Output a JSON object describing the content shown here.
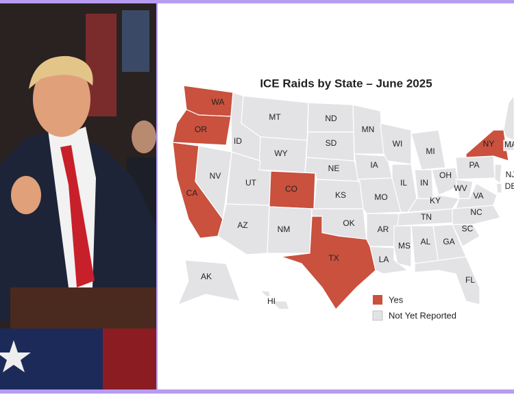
{
  "title": "ICE Raids by State – June 2025",
  "legend": [
    {
      "label": "Yes",
      "color": "#c9513d"
    },
    {
      "label": "Not Yet Reported",
      "color": "#e3e3e6"
    }
  ],
  "states": [
    {
      "abbr": "WA",
      "category": 0
    },
    {
      "abbr": "OR",
      "category": 0
    },
    {
      "abbr": "CA",
      "category": 0
    },
    {
      "abbr": "NV",
      "category": 1
    },
    {
      "abbr": "ID",
      "category": 1
    },
    {
      "abbr": "MT",
      "category": 1
    },
    {
      "abbr": "WY",
      "category": 1
    },
    {
      "abbr": "UT",
      "category": 1
    },
    {
      "abbr": "AZ",
      "category": 1
    },
    {
      "abbr": "CO",
      "category": 0
    },
    {
      "abbr": "NM",
      "category": 1
    },
    {
      "abbr": "ND",
      "category": 1
    },
    {
      "abbr": "SD",
      "category": 1
    },
    {
      "abbr": "NE",
      "category": 1
    },
    {
      "abbr": "KS",
      "category": 1
    },
    {
      "abbr": "OK",
      "category": 1
    },
    {
      "abbr": "TX",
      "category": 0
    },
    {
      "abbr": "MN",
      "category": 1
    },
    {
      "abbr": "IA",
      "category": 1
    },
    {
      "abbr": "MO",
      "category": 1
    },
    {
      "abbr": "AR",
      "category": 1
    },
    {
      "abbr": "LA",
      "category": 1
    },
    {
      "abbr": "WI",
      "category": 1
    },
    {
      "abbr": "IL",
      "category": 1
    },
    {
      "abbr": "MS",
      "category": 1
    },
    {
      "abbr": "AL",
      "category": 1
    },
    {
      "abbr": "GA",
      "category": 1
    },
    {
      "abbr": "FL",
      "category": 1
    },
    {
      "abbr": "MI",
      "category": 1
    },
    {
      "abbr": "IN",
      "category": 1
    },
    {
      "abbr": "OH",
      "category": 1
    },
    {
      "abbr": "KY",
      "category": 1
    },
    {
      "abbr": "TN",
      "category": 1
    },
    {
      "abbr": "WV",
      "category": 1
    },
    {
      "abbr": "VA",
      "category": 1
    },
    {
      "abbr": "NC",
      "category": 1
    },
    {
      "abbr": "SC",
      "category": 1
    },
    {
      "abbr": "PA",
      "category": 1
    },
    {
      "abbr": "NY",
      "category": 0
    },
    {
      "abbr": "NJ",
      "category": 1
    },
    {
      "abbr": "DE",
      "category": 1
    },
    {
      "abbr": "MA",
      "category": 1
    },
    {
      "abbr": "AK",
      "category": 1
    },
    {
      "abbr": "HI",
      "category": 1
    }
  ]
}
